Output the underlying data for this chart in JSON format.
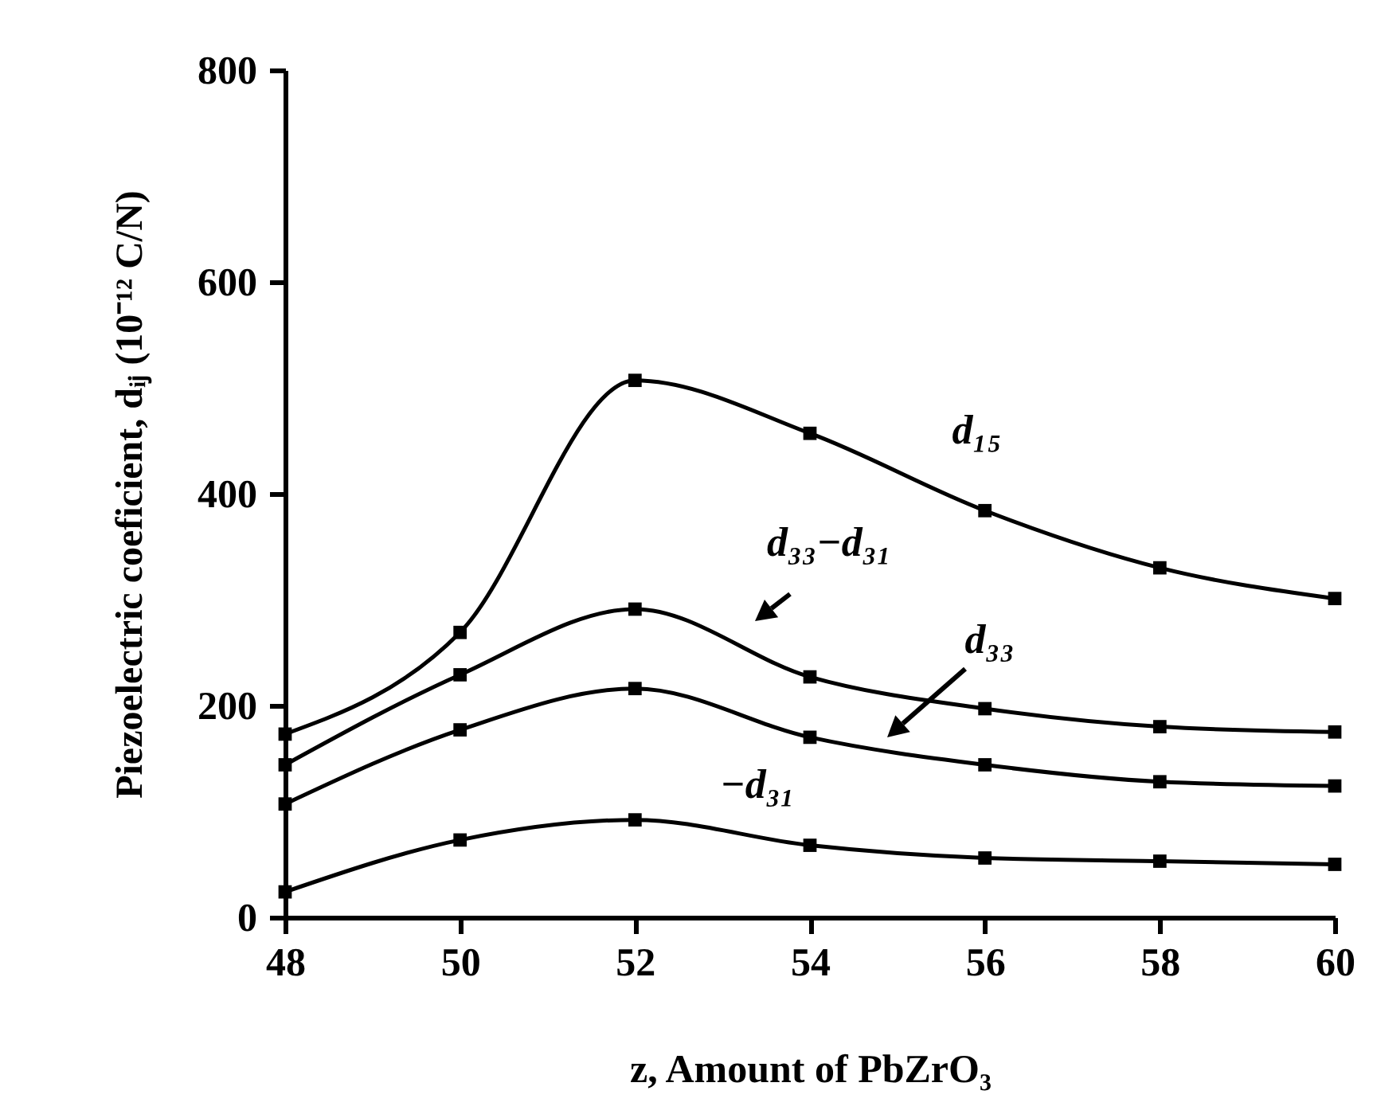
{
  "chart_data": {
    "type": "line",
    "xlabel": "z, Amount of PbZrO₃",
    "ylabel": "Piezoelectric coeficient, dᵢⱼ (10⁻¹² C/N)",
    "x": [
      48,
      50,
      52,
      54,
      56,
      58,
      60
    ],
    "series": [
      {
        "name": "d₁₅",
        "color": "#000000",
        "values": [
          173,
          269,
          507,
          457,
          384,
          330,
          301
        ]
      },
      {
        "name": "d₃₃−d₃₁",
        "color": "#000000",
        "values": [
          144,
          229,
          291,
          227,
          197,
          180,
          175
        ]
      },
      {
        "name": "d₃₃",
        "color": "#000000",
        "values": [
          107,
          177,
          216,
          170,
          144,
          128,
          124
        ]
      },
      {
        "name": "−d₃₁",
        "color": "#000000",
        "values": [
          24,
          73,
          92,
          68,
          56,
          53,
          50
        ]
      }
    ],
    "xlim": [
      48,
      60
    ],
    "xticks": [
      48,
      50,
      52,
      54,
      56,
      58,
      60
    ],
    "ylim": [
      0,
      800
    ],
    "yticks": [
      0,
      200,
      400,
      600,
      800
    ],
    "grid": false,
    "marker": "square",
    "line_style": "solid"
  }
}
